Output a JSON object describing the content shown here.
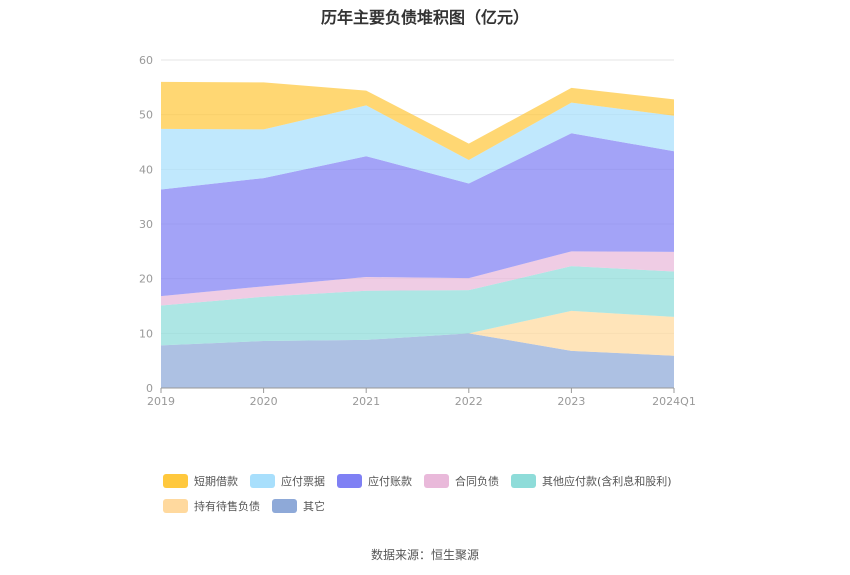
{
  "chart_data": {
    "type": "area",
    "stacked": true,
    "title": "历年主要负债堆积图（亿元）",
    "categories": [
      "2019",
      "2020",
      "2021",
      "2022",
      "2023",
      "2024Q1"
    ],
    "ylim": [
      0,
      60
    ],
    "yticks": [
      0,
      10,
      20,
      30,
      40,
      50,
      60
    ],
    "grid": "horizontal",
    "legend_position": "bottom",
    "series": [
      {
        "name": "其它",
        "color": "#8ea9d8",
        "values": [
          7.8,
          8.6,
          8.8,
          10.0,
          6.8,
          5.9
        ]
      },
      {
        "name": "持有待售负债",
        "color": "#ffd99e",
        "values": [
          0.0,
          0.0,
          0.0,
          0.0,
          7.3,
          7.1
        ]
      },
      {
        "name": "其他应付款(含利息和股利)",
        "color": "#8edcd9",
        "values": [
          7.3,
          8.1,
          9.0,
          7.9,
          8.2,
          8.3
        ]
      },
      {
        "name": "合同负债",
        "color": "#e9b9da",
        "values": [
          1.7,
          1.9,
          2.5,
          2.2,
          2.7,
          3.6
        ]
      },
      {
        "name": "应付账款",
        "color": "#7f80f4",
        "values": [
          19.5,
          19.8,
          22.1,
          17.3,
          21.6,
          18.4
        ]
      },
      {
        "name": "应付票据",
        "color": "#a8dffc",
        "values": [
          11.1,
          8.9,
          9.3,
          4.3,
          5.6,
          6.5
        ]
      },
      {
        "name": "短期借款",
        "color": "#ffc83d",
        "values": [
          8.6,
          8.6,
          2.7,
          3.0,
          2.7,
          3.0
        ]
      }
    ],
    "legend_order": [
      "短期借款",
      "应付票据",
      "应付账款",
      "合同负债",
      "其他应付款(含利息和股利)",
      "持有待售负债",
      "其它"
    ]
  },
  "source_text": "数据来源：恒生聚源"
}
